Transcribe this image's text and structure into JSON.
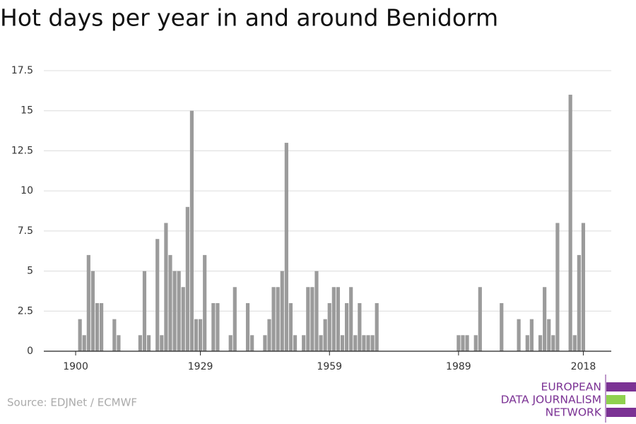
{
  "chart_data": {
    "type": "bar",
    "title": "Hot days per year in and around Benidorm",
    "x": [
      1900,
      1901,
      1902,
      1903,
      1904,
      1905,
      1906,
      1907,
      1908,
      1909,
      1910,
      1911,
      1912,
      1913,
      1914,
      1915,
      1916,
      1917,
      1918,
      1919,
      1920,
      1921,
      1922,
      1923,
      1924,
      1925,
      1926,
      1927,
      1928,
      1929,
      1930,
      1931,
      1932,
      1933,
      1934,
      1935,
      1936,
      1937,
      1938,
      1939,
      1940,
      1941,
      1942,
      1943,
      1944,
      1945,
      1946,
      1947,
      1948,
      1949,
      1950,
      1951,
      1952,
      1953,
      1954,
      1955,
      1956,
      1957,
      1958,
      1959,
      1960,
      1961,
      1962,
      1963,
      1964,
      1965,
      1966,
      1967,
      1968,
      1969,
      1970,
      1971,
      1972,
      1973,
      1974,
      1975,
      1976,
      1977,
      1978,
      1979,
      1980,
      1981,
      1982,
      1983,
      1984,
      1985,
      1986,
      1987,
      1988,
      1989,
      1990,
      1991,
      1992,
      1993,
      1994,
      1995,
      1996,
      1997,
      1998,
      1999,
      2000,
      2001,
      2002,
      2003,
      2004,
      2005,
      2006,
      2007,
      2008,
      2009,
      2010,
      2011,
      2012,
      2013,
      2014,
      2015,
      2016,
      2017,
      2018
    ],
    "values": [
      0,
      2,
      1,
      6,
      5,
      3,
      3,
      0,
      0,
      2,
      1,
      0,
      0,
      0,
      0,
      1,
      5,
      1,
      0,
      7,
      1,
      8,
      6,
      5,
      5,
      4,
      9,
      15,
      2,
      2,
      6,
      0,
      3,
      3,
      0,
      0,
      1,
      4,
      0,
      0,
      3,
      1,
      0,
      0,
      1,
      2,
      4,
      4,
      5,
      13,
      3,
      1,
      0,
      1,
      4,
      4,
      5,
      1,
      2,
      3,
      4,
      4,
      1,
      3,
      4,
      1,
      3,
      1,
      1,
      1,
      3,
      0,
      0,
      0,
      0,
      0,
      0,
      0,
      0,
      0,
      0,
      0,
      0,
      0,
      0,
      0,
      0,
      0,
      0,
      1,
      1,
      1,
      0,
      1,
      4,
      0,
      0,
      0,
      0,
      3,
      0,
      0,
      0,
      2,
      0,
      1,
      2,
      0,
      1,
      4,
      2,
      1,
      8,
      0,
      0,
      16,
      1,
      6,
      8
    ],
    "color": "#9b9b9b",
    "xlim": [
      1892.6,
      2024.5
    ],
    "xticks": [
      1900,
      1929,
      1959,
      1989,
      2018
    ],
    "ylim": [
      0,
      17.5
    ],
    "yticks": [
      0,
      2.5,
      5,
      7.5,
      10,
      12.5,
      15,
      17.5
    ],
    "grid": true,
    "source": "Source: EDJNet / ECMWF"
  },
  "logo": [
    "EUROPEAN",
    "DATA JOURNALISM",
    "NETWORK"
  ]
}
